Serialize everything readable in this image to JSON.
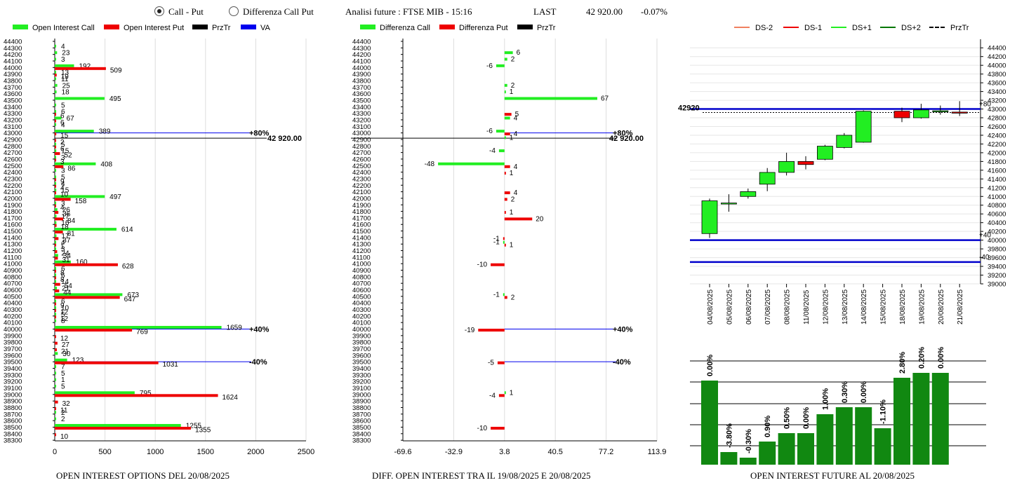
{
  "header": {
    "radio_call_put": "Call - Put",
    "radio_diff": "Differenza Call Put",
    "analisi": "Analisi future : FTSE MIB - 15:16",
    "last_label": "LAST",
    "last_value": "42 920.00",
    "change": "-0.07%"
  },
  "legends": {
    "left": [
      "Open Interest Call",
      "Open Interest Put",
      "PrzTr",
      "VA"
    ],
    "mid": [
      "Differenza Call",
      "Differenza Put",
      "PrzTr"
    ],
    "right": [
      "DS-2",
      "DS-1",
      "DS+1",
      "DS+2",
      "PrzTr"
    ]
  },
  "colors": {
    "call": "#22ee22",
    "put": "#ee0000",
    "przTr": "#000000",
    "va": "#0000ee",
    "ds_minus2": "#f08060",
    "ds_minus1": "#ee0000",
    "ds_plus1": "#22ee22",
    "ds_plus2": "#007700",
    "bar_future": "#118811"
  },
  "footers": {
    "left": "OPEN INTEREST OPTIONS DEL 20/08/2025",
    "mid": "DIFF. OPEN INTEREST TRA IL 19/08/2025 E 20/08/2025",
    "right": "OPEN INTEREST FUTURE AL 20/08/2025"
  },
  "chart_data": [
    {
      "type": "bar",
      "orientation": "horizontal",
      "strike_labels": [
        "44400",
        "44300",
        "44200",
        "44100",
        "44000",
        "43900",
        "43800",
        "43700",
        "43600",
        "43500",
        "43400",
        "43300",
        "43200",
        "43100",
        "43000",
        "42900",
        "42800",
        "42700",
        "42600",
        "42500",
        "42400",
        "42300",
        "42200",
        "42100",
        "42000",
        "41900",
        "41800",
        "41700",
        "41600",
        "41500",
        "41400",
        "41300",
        "41200",
        "41100",
        "41000",
        "40900",
        "40800",
        "40700",
        "40600",
        "40500",
        "40400",
        "40300",
        "40200",
        "40100",
        "40000",
        "39900",
        "39800",
        "39700",
        "39600",
        "39500",
        "39400",
        "39300",
        "39200",
        "39100",
        "39000",
        "38900",
        "38800",
        "38700",
        "38600",
        "38500",
        "38400",
        "38300"
      ],
      "x_ticks": [
        "0",
        "500",
        "1000",
        "1500",
        "2000",
        "2500"
      ],
      "xlim": [
        0,
        2500
      ],
      "series": [
        {
          "name": "Open Interest Call",
          "points": [
            {
              "strike": 44300,
              "value": 4
            },
            {
              "strike": 44200,
              "value": 23
            },
            {
              "strike": 44100,
              "value": 3
            },
            {
              "strike": 44000,
              "value": 192
            },
            {
              "strike": 43900,
              "value": 13
            },
            {
              "strike": 43800,
              "value": 11
            },
            {
              "strike": 43700,
              "value": 25
            },
            {
              "strike": 43600,
              "value": 18
            },
            {
              "strike": 43500,
              "value": 495
            },
            {
              "strike": 43400,
              "value": 5
            },
            {
              "strike": 43300,
              "value": 6
            },
            {
              "strike": 43200,
              "value": 67
            },
            {
              "strike": 43100,
              "value": 4
            },
            {
              "strike": 43000,
              "value": 389
            },
            {
              "strike": 42800,
              "value": 5
            },
            {
              "strike": 42700,
              "value": 15
            },
            {
              "strike": 42600,
              "value": 3
            },
            {
              "strike": 42500,
              "value": 408
            },
            {
              "strike": 42400,
              "value": 3
            },
            {
              "strike": 42300,
              "value": 5
            },
            {
              "strike": 42200,
              "value": 4
            },
            {
              "strike": 42100,
              "value": 15
            },
            {
              "strike": 42000,
              "value": 497
            },
            {
              "strike": 41900,
              "value": 3
            },
            {
              "strike": 41800,
              "value": 26
            },
            {
              "strike": 41700,
              "value": 17
            },
            {
              "strike": 41600,
              "value": 16
            },
            {
              "strike": 41500,
              "value": 614
            },
            {
              "strike": 41400,
              "value": 17
            },
            {
              "strike": 41300,
              "value": 4
            },
            {
              "strike": 41200,
              "value": 3
            },
            {
              "strike": 41100,
              "value": 34
            },
            {
              "strike": 41000,
              "value": 160
            },
            {
              "strike": 40900,
              "value": 6
            },
            {
              "strike": 40800,
              "value": 6
            },
            {
              "strike": 40700,
              "value": 14
            },
            {
              "strike": 40600,
              "value": 21
            },
            {
              "strike": 40500,
              "value": 673
            },
            {
              "strike": 40400,
              "value": 6
            },
            {
              "strike": 40300,
              "value": 10
            },
            {
              "strike": 40200,
              "value": 5
            },
            {
              "strike": 40100,
              "value": 8
            },
            {
              "strike": 40000,
              "value": 1659
            },
            {
              "strike": 39600,
              "value": 30
            },
            {
              "strike": 39500,
              "value": 123
            },
            {
              "strike": 39400,
              "value": 7
            },
            {
              "strike": 39300,
              "value": 5
            },
            {
              "strike": 39200,
              "value": 1
            },
            {
              "strike": 39100,
              "value": 5
            },
            {
              "strike": 39000,
              "value": 795
            },
            {
              "strike": 38700,
              "value": 2
            },
            {
              "strike": 38600,
              "value": 2
            },
            {
              "strike": 38500,
              "value": 1255
            }
          ]
        },
        {
          "name": "Open Interest Put",
          "points": [
            {
              "strike": 44000,
              "value": 509
            },
            {
              "strike": 43900,
              "value": 19
            },
            {
              "strike": 43300,
              "value": 6
            },
            {
              "strike": 43200,
              "value": 6
            },
            {
              "strike": 43000,
              "value": 15
            },
            {
              "strike": 42900,
              "value": 2
            },
            {
              "strike": 42800,
              "value": 6
            },
            {
              "strike": 42700,
              "value": 52
            },
            {
              "strike": 42600,
              "value": 3
            },
            {
              "strike": 42500,
              "value": 86
            },
            {
              "strike": 42300,
              "value": 9
            },
            {
              "strike": 42200,
              "value": 4
            },
            {
              "strike": 42100,
              "value": 10
            },
            {
              "strike": 42000,
              "value": 158
            },
            {
              "strike": 41900,
              "value": 4
            },
            {
              "strike": 41800,
              "value": 36
            },
            {
              "strike": 41700,
              "value": 84
            },
            {
              "strike": 41600,
              "value": 18
            },
            {
              "strike": 41500,
              "value": 81
            },
            {
              "strike": 41400,
              "value": 37
            },
            {
              "strike": 41300,
              "value": 1
            },
            {
              "strike": 41200,
              "value": 24
            },
            {
              "strike": 41100,
              "value": 31
            },
            {
              "strike": 41000,
              "value": 628
            },
            {
              "strike": 40900,
              "value": 8
            },
            {
              "strike": 40800,
              "value": 8
            },
            {
              "strike": 40700,
              "value": 54
            },
            {
              "strike": 40600,
              "value": 44
            },
            {
              "strike": 40500,
              "value": 647
            },
            {
              "strike": 40400,
              "value": 9
            },
            {
              "strike": 40300,
              "value": 12
            },
            {
              "strike": 40200,
              "value": 12
            },
            {
              "strike": 40000,
              "value": 769
            },
            {
              "strike": 39900,
              "value": 12
            },
            {
              "strike": 39800,
              "value": 27
            },
            {
              "strike": 39700,
              "value": 21
            },
            {
              "strike": 39500,
              "value": 1031
            },
            {
              "strike": 38900,
              "value": 32
            },
            {
              "strike": 38800,
              "value": 11
            },
            {
              "strike": 39000,
              "value": 1624
            },
            {
              "strike": 38500,
              "value": 1355
            },
            {
              "strike": 38400,
              "value": 10
            }
          ]
        }
      ],
      "reference_lines": [
        {
          "kind": "PrzTr",
          "strike": 42920,
          "label": "42 920.00"
        },
        {
          "kind": "VA",
          "strike": 43000,
          "label": "+80%"
        },
        {
          "kind": "VA",
          "strike": 40000,
          "label": "+40%"
        },
        {
          "kind": "VA",
          "strike": 39500,
          "label": "-40%"
        }
      ]
    },
    {
      "type": "bar",
      "orientation": "horizontal",
      "strike_labels": [
        "44400",
        "44300",
        "44200",
        "44100",
        "44000",
        "43900",
        "43800",
        "43700",
        "43600",
        "43500",
        "43400",
        "43300",
        "43200",
        "43100",
        "43000",
        "42900",
        "42800",
        "42700",
        "42600",
        "42500",
        "42400",
        "42300",
        "42200",
        "42100",
        "42000",
        "41900",
        "41800",
        "41700",
        "41600",
        "41500",
        "41400",
        "41300",
        "41200",
        "41100",
        "41000",
        "40900",
        "40800",
        "40700",
        "40600",
        "40500",
        "40400",
        "40300",
        "40200",
        "40100",
        "40000",
        "39900",
        "39800",
        "39700",
        "39600",
        "39500",
        "39400",
        "39300",
        "39200",
        "39100",
        "39000",
        "38900",
        "38800",
        "38700",
        "38600",
        "38500",
        "38400",
        "38300"
      ],
      "x_ticks": [
        "-69.6",
        "-32.9",
        "3.8",
        "40.5",
        "77.2",
        "113.9"
      ],
      "xlim": [
        -69.6,
        113.9
      ],
      "series": [
        {
          "name": "Differenza Call",
          "points": [
            {
              "strike": 44200,
              "value": 6
            },
            {
              "strike": 44100,
              "value": 2
            },
            {
              "strike": 44000,
              "value": -6
            },
            {
              "strike": 43700,
              "value": 2
            },
            {
              "strike": 43600,
              "value": 1
            },
            {
              "strike": 43500,
              "value": 67
            },
            {
              "strike": 43200,
              "value": 4
            },
            {
              "strike": 43000,
              "value": -6
            },
            {
              "strike": 42900,
              "value": 1
            },
            {
              "strike": 42700,
              "value": -4
            },
            {
              "strike": 42500,
              "value": -48
            },
            {
              "strike": 41300,
              "value": -1
            },
            {
              "strike": 40500,
              "value": -1
            },
            {
              "strike": 39000,
              "value": 1
            }
          ]
        },
        {
          "name": "Differenza Put",
          "points": [
            {
              "strike": 43300,
              "value": 5
            },
            {
              "strike": 43000,
              "value": 4
            },
            {
              "strike": 42500,
              "value": 4
            },
            {
              "strike": 42400,
              "value": 1
            },
            {
              "strike": 42100,
              "value": 4
            },
            {
              "strike": 42000,
              "value": 2
            },
            {
              "strike": 41800,
              "value": 1
            },
            {
              "strike": 41700,
              "value": 20
            },
            {
              "strike": 41400,
              "value": -1
            },
            {
              "strike": 41300,
              "value": 1
            },
            {
              "strike": 41000,
              "value": -10
            },
            {
              "strike": 40500,
              "value": 2
            },
            {
              "strike": 40000,
              "value": -19
            },
            {
              "strike": 39500,
              "value": -5
            },
            {
              "strike": 39000,
              "value": -4
            },
            {
              "strike": 38500,
              "value": -10
            }
          ]
        }
      ],
      "reference_lines": [
        {
          "kind": "PrzTr",
          "strike": 42920,
          "label": "42 920.00"
        },
        {
          "kind": "VA",
          "strike": 43000,
          "label": "+80%"
        },
        {
          "kind": "VA",
          "strike": 40000,
          "label": "+40%"
        },
        {
          "kind": "VA",
          "strike": 39500,
          "label": "-40%"
        }
      ]
    },
    {
      "type": "candlestick",
      "dates": [
        "04/08/2025",
        "05/08/2025",
        "06/08/2025",
        "07/08/2025",
        "08/08/2025",
        "11/08/2025",
        "12/08/2025",
        "13/08/2025",
        "14/08/2025",
        "15/08/2025",
        "18/08/2025",
        "19/08/2025",
        "20/08/2025",
        "21/08/2025"
      ],
      "y_ticks": [
        "44400",
        "44200",
        "44000",
        "43800",
        "43600",
        "43400",
        "43200",
        "43000",
        "42800",
        "42600",
        "42400",
        "42200",
        "42000",
        "41800",
        "41600",
        "41400",
        "41200",
        "41000",
        "40800",
        "40600",
        "40400",
        "40200",
        "40000",
        "39800",
        "39600",
        "39400",
        "39200",
        "39000"
      ],
      "ylim": [
        39000,
        44500
      ],
      "candles": [
        {
          "date": "04/08/2025",
          "open": 40150,
          "high": 40950,
          "low": 40050,
          "close": 40900
        },
        {
          "date": "05/08/2025",
          "open": 40850,
          "high": 41050,
          "low": 40650,
          "close": 40850
        },
        {
          "date": "06/08/2025",
          "open": 41000,
          "high": 41180,
          "low": 40950,
          "close": 41110
        },
        {
          "date": "07/08/2025",
          "open": 41280,
          "high": 41650,
          "low": 41120,
          "close": 41550
        },
        {
          "date": "08/08/2025",
          "open": 41550,
          "high": 42000,
          "low": 41480,
          "close": 41800
        },
        {
          "date": "11/08/2025",
          "open": 41800,
          "high": 41920,
          "low": 41620,
          "close": 41730
        },
        {
          "date": "12/08/2025",
          "open": 41850,
          "high": 42180,
          "low": 41830,
          "close": 42150
        },
        {
          "date": "13/08/2025",
          "open": 42120,
          "high": 42450,
          "low": 42100,
          "close": 42400
        },
        {
          "date": "14/08/2025",
          "open": 42240,
          "high": 42970,
          "low": 42230,
          "close": 42950
        },
        {
          "date": "18/08/2025",
          "open": 42950,
          "high": 43030,
          "low": 42700,
          "close": 42800
        },
        {
          "date": "19/08/2025",
          "open": 42800,
          "high": 43120,
          "low": 42780,
          "close": 42980
        },
        {
          "date": "20/08/2025",
          "open": 42940,
          "high": 43080,
          "low": 42870,
          "close": 42960
        },
        {
          "date": "21/08/2025",
          "open": 42930,
          "high": 43180,
          "low": 42840,
          "close": 42920
        }
      ],
      "price_label": "42920",
      "reference_lines": [
        {
          "level": 43000,
          "label": "+80"
        },
        {
          "level": 40000,
          "label": "+40"
        },
        {
          "level": 39500,
          "label": "-40"
        }
      ]
    },
    {
      "type": "bar",
      "dates": [
        "04/08/2025",
        "05/08/2025",
        "06/08/2025",
        "07/08/2025",
        "08/08/2025",
        "11/08/2025",
        "12/08/2025",
        "13/08/2025",
        "14/08/2025",
        "15/08/2025",
        "18/08/2025",
        "19/08/2025",
        "20/08/2025"
      ],
      "labels": [
        "0.00%",
        "-3.80%",
        "-0.30%",
        "0.90%",
        "0.50%",
        "0.00%",
        "1.00%",
        "0.30%",
        "0.00%",
        "-1.10%",
        "2.80%",
        "0.20%",
        "0.00%"
      ],
      "values": [
        120,
        18,
        10,
        33,
        45,
        45,
        72,
        82,
        82,
        52,
        124,
        131,
        131
      ]
    }
  ]
}
